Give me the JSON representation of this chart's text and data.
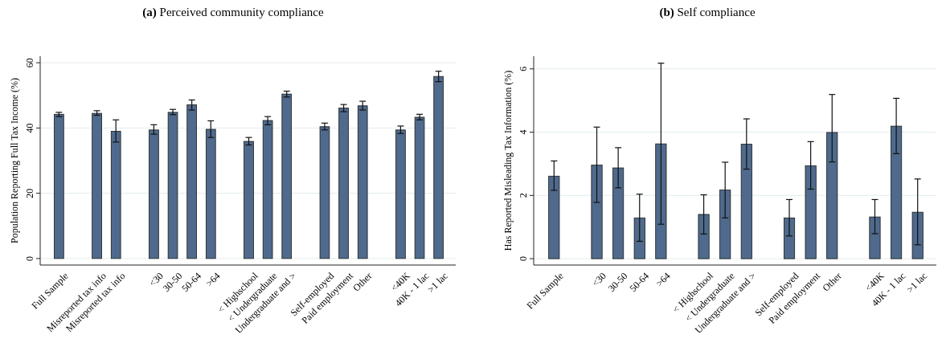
{
  "chart_data": [
    {
      "type": "bar",
      "title": "(a) Perceived community compliance",
      "ylabel": "Population Reporting Full Tax Income (%)",
      "categories": [
        "Full Sample",
        null,
        "Misreported tax info",
        "Misreported tax info",
        null,
        "<30",
        "30-50",
        "50-64",
        ">64",
        null,
        "< Highschool",
        "< Undergraduate",
        "Undergraduate and >",
        null,
        "Self-employed",
        "Paid employment",
        "Other",
        null,
        "<40K",
        "40K - 1 lac",
        ">1 lac"
      ],
      "values": [
        44.2,
        null,
        44.5,
        39.0,
        null,
        39.4,
        44.8,
        47.1,
        39.6,
        null,
        35.9,
        42.3,
        50.4,
        null,
        40.4,
        46.1,
        46.8,
        null,
        39.4,
        43.3,
        55.8
      ],
      "errors": [
        [
          43.5,
          44.8
        ],
        null,
        [
          43.9,
          45.3
        ],
        [
          35.7,
          42.5
        ],
        null,
        [
          38.1,
          41.0
        ],
        [
          44.1,
          45.7
        ],
        [
          45.5,
          48.6
        ],
        [
          37.1,
          42.2
        ],
        null,
        [
          34.8,
          37.1
        ],
        [
          41.0,
          43.5
        ],
        [
          49.5,
          51.3
        ],
        null,
        [
          39.4,
          41.5
        ],
        [
          45.0,
          47.2
        ],
        [
          45.5,
          48.2
        ],
        null,
        [
          38.3,
          40.6
        ],
        [
          42.5,
          44.2
        ],
        [
          54.2,
          57.4
        ]
      ],
      "color": "#4f6a8c",
      "ylim": [
        -2,
        62
      ],
      "yticks": [
        0,
        20,
        40,
        60
      ],
      "grid": "y"
    },
    {
      "type": "bar",
      "title": "(b) Self compliance",
      "ylabel": "Has Reported Misleading Tax Information (%)",
      "categories": [
        "Full Sample",
        null,
        "<30",
        "30-50",
        "50-64",
        ">64",
        null,
        "< Highschool",
        "< Undergraduate",
        "Undergraduate and >",
        null,
        "Self-employed",
        "Paid employment",
        "Other",
        null,
        "<40K",
        "40K - 1 lac",
        ">1 lac"
      ],
      "values": [
        2.61,
        null,
        2.96,
        2.87,
        1.29,
        3.63,
        null,
        1.4,
        2.17,
        3.62,
        null,
        1.29,
        2.94,
        3.99,
        null,
        1.32,
        4.19,
        1.47
      ],
      "errors": [
        [
          2.16,
          3.09
        ],
        null,
        [
          1.78,
          4.16
        ],
        [
          2.24,
          3.51
        ],
        [
          0.55,
          2.04
        ],
        [
          1.09,
          6.18
        ],
        null,
        [
          0.78,
          2.02
        ],
        [
          1.29,
          3.05
        ],
        [
          2.83,
          4.42
        ],
        null,
        [
          0.72,
          1.87
        ],
        [
          2.2,
          3.7
        ],
        [
          3.06,
          5.19
        ],
        null,
        [
          0.79,
          1.87
        ],
        [
          3.32,
          5.07
        ],
        [
          0.44,
          2.52
        ]
      ],
      "color": "#4f6a8c",
      "ylim": [
        -0.2,
        6.4
      ],
      "yticks": [
        0,
        2,
        4,
        6
      ],
      "grid": "y"
    }
  ]
}
